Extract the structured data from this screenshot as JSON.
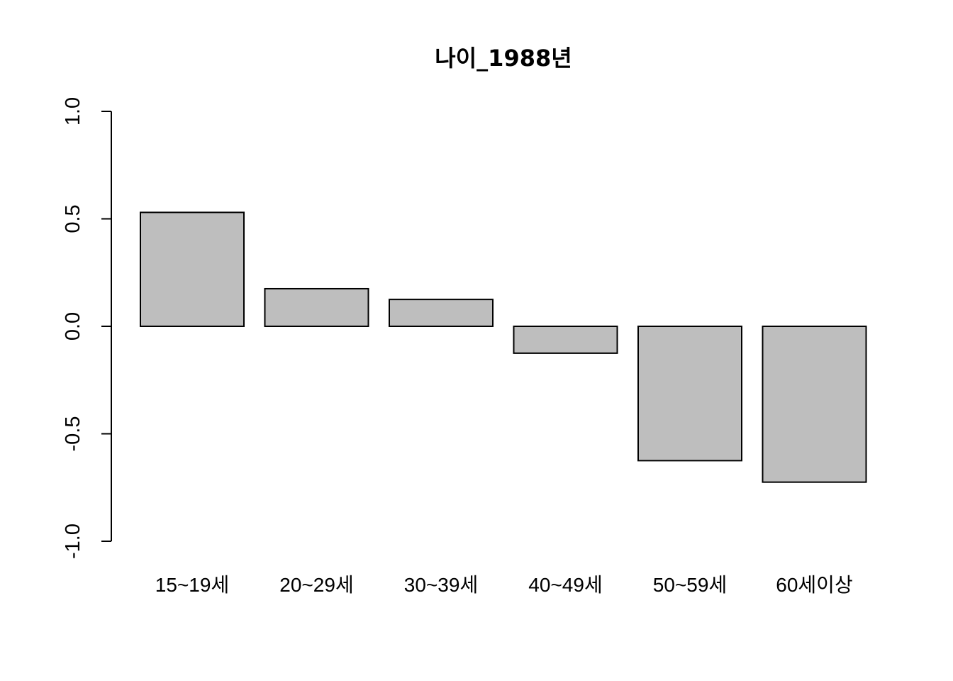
{
  "chart_data": {
    "type": "bar",
    "title": "나이_1988년",
    "xlabel": "",
    "ylabel": "",
    "categories": [
      "15~19세",
      "20~29세",
      "30~39세",
      "40~49세",
      "50~59세",
      "60세이상"
    ],
    "values": [
      0.53,
      0.175,
      0.125,
      -0.125,
      -0.625,
      -0.725
    ],
    "ylim": [
      -1.0,
      1.0
    ],
    "yticks": [
      "-1.0",
      "-0.5",
      "0.0",
      "0.5",
      "1.0"
    ],
    "grid": false,
    "bar_color": "#bebebe",
    "border_color": "#000000"
  }
}
